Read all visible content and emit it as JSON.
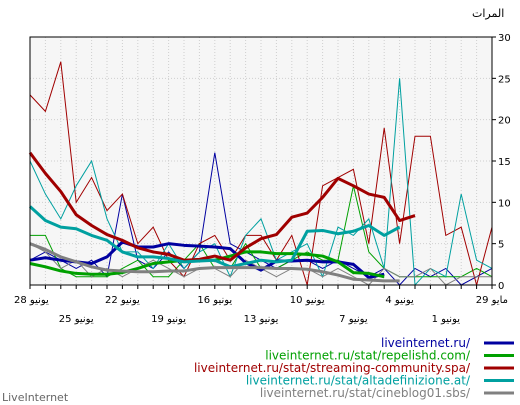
{
  "chart_data": {
    "type": "line",
    "ylabel": "المرات",
    "ylim": [
      0,
      30
    ],
    "yticks": [
      0,
      5,
      10,
      15,
      20,
      25,
      30
    ],
    "x": [
      "28 يونيو",
      "27 يونيو",
      "26 يونيو",
      "25 يونيو",
      "24 يونيو",
      "23 يونيو",
      "22 يونيو",
      "21 يونيو",
      "20 يونيو",
      "19 يونيو",
      "18 يونيو",
      "17 يونيو",
      "16 يونيو",
      "15 يونيو",
      "14 يونيو",
      "13 يونيو",
      "12 يونيو",
      "11 يونيو",
      "10 يونيو",
      "9 يونيو",
      "8 يونيو",
      "7 يونيو",
      "6 يونيو",
      "5 يونيو",
      "4 يونيو",
      "3 يونيو",
      "2 يونيو",
      "1 يونيو",
      "31 مايو",
      "30 مايو",
      "29 مايو"
    ],
    "xticks_row1": [
      "28 يونيو",
      "22 يونيو",
      "16 يونيو",
      "10 يونيو",
      "4 يونيو",
      "29 مايو"
    ],
    "xticks_row2": [
      "25 يونيو",
      "19 يونيو",
      "13 يونيو",
      "7 يونيو",
      "1 يونيو"
    ],
    "grid": true,
    "legend_position": "bottom-right",
    "series": [
      {
        "name": "liveinternet.ru/",
        "color": "#0000a0",
        "values": [
          3,
          4,
          3,
          2,
          3,
          1,
          11,
          3,
          2,
          4,
          2,
          4,
          16,
          5,
          4,
          3,
          2,
          3,
          3,
          2,
          3,
          2,
          1,
          2,
          0,
          2,
          1,
          2,
          0,
          1,
          2
        ],
        "smooth": [
          3,
          3.3,
          3,
          2.8,
          2.6,
          3.4,
          5.2,
          4.6,
          4.6,
          5,
          4.8,
          4.7,
          4.6,
          4.4,
          2.7,
          1.8,
          2.9,
          2.9,
          3,
          2.8,
          2.8,
          2.5,
          0.9,
          1.3
        ]
      },
      {
        "name": "liveinternet.ru/stat/repelishd.com/",
        "color": "#00a000",
        "values": [
          6,
          6,
          2,
          1,
          1,
          1,
          2,
          3,
          1,
          1,
          3,
          5,
          2,
          2,
          5,
          2,
          2,
          3,
          4,
          3,
          3,
          12,
          4,
          2,
          1,
          1,
          1,
          1,
          1,
          2,
          1
        ],
        "smooth": [
          2.6,
          2.2,
          1.7,
          1.4,
          1.3,
          1.3,
          1.5,
          2,
          2.6,
          2.8,
          3,
          3,
          3,
          3.5,
          4,
          4,
          3.8,
          3.8,
          3.7,
          3.5,
          2.8,
          1.5,
          1.4,
          1
        ]
      },
      {
        "name": "liveinternet.ru/stat/streaming-community.spa/",
        "color": "#a00000",
        "values": [
          23,
          21,
          27,
          10,
          13,
          9,
          11,
          5,
          7,
          3,
          1,
          5,
          6,
          3,
          6,
          6,
          3,
          6,
          0,
          12,
          13,
          14,
          5,
          19,
          5,
          18,
          18,
          6,
          7,
          0,
          7
        ],
        "smooth": [
          16,
          13.5,
          11.3,
          8.5,
          7.2,
          6.1,
          5.4,
          4.5,
          4,
          3.7,
          3,
          3.1,
          3.5,
          3,
          4.5,
          5.6,
          6.1,
          8.2,
          8.7,
          10.6,
          12.9,
          12,
          11,
          10.6,
          7.8,
          8.4
        ]
      },
      {
        "name": "liveinternet.ru/stat/altadefinizione.at/",
        "color": "#00a0a0",
        "values": [
          15,
          11,
          8,
          12,
          15,
          8,
          4,
          4,
          2,
          5,
          2,
          4,
          5,
          1,
          6,
          8,
          3,
          4,
          5,
          1,
          7,
          6,
          8,
          2,
          25,
          0,
          2,
          1,
          11,
          3,
          2
        ],
        "smooth": [
          9.5,
          7.8,
          7,
          6.8,
          6,
          5.4,
          4,
          3.4,
          3.4,
          3.2,
          2.8,
          2.9,
          3,
          2.2,
          2.6,
          3,
          2.8,
          3,
          6.5,
          6.6,
          6.2,
          6.5,
          7.2,
          6,
          7
        ]
      },
      {
        "name": "liveinternet.ru/stat/cineblog01.sbs/",
        "color": "#808080",
        "values": [
          5,
          4,
          2,
          3,
          1,
          2,
          1,
          2,
          3,
          2,
          1,
          2,
          2,
          1,
          3,
          2,
          1,
          2,
          2,
          1,
          2,
          1,
          0,
          2,
          1,
          1,
          2,
          0,
          1,
          1,
          1
        ],
        "smooth": [
          5,
          4.3,
          3.4,
          2.8,
          2.2,
          1.8,
          1.7,
          1.6,
          1.6,
          1.7,
          1.7,
          2,
          2.1,
          2.1,
          2.1,
          2.1,
          2,
          2,
          1.9,
          1.6,
          1.2,
          0.7,
          0.6,
          0.5,
          0.5
        ]
      }
    ],
    "footer": "LiveInternet"
  }
}
